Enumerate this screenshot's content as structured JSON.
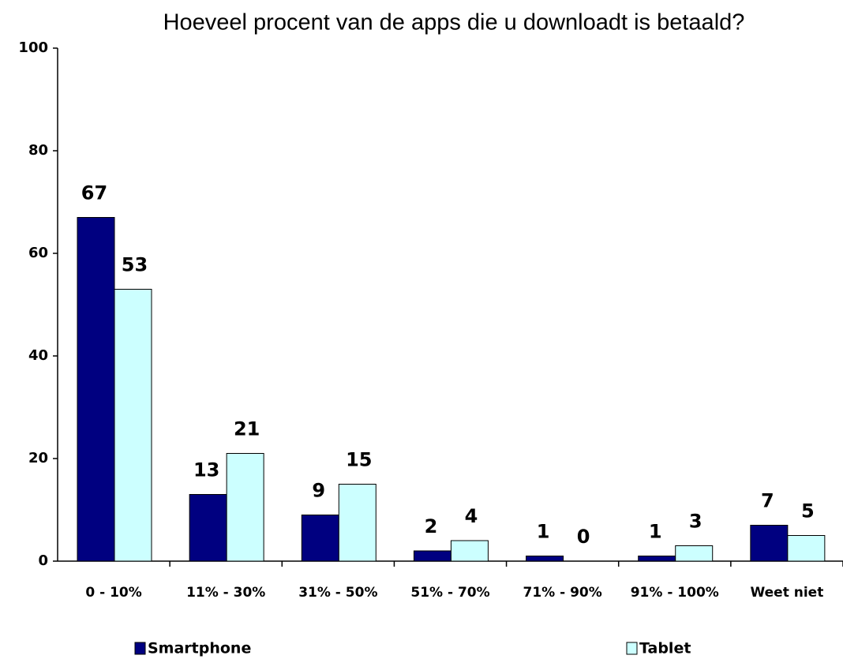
{
  "chart_data": {
    "type": "bar",
    "title": "Hoeveel procent van de apps die u downloadt is betaald?",
    "categories": [
      "0 - 10%",
      "11% - 30%",
      "31% - 50%",
      "51% - 70%",
      "71% - 90%",
      "91% - 100%",
      "Weet niet"
    ],
    "series": [
      {
        "name": "Smartphone",
        "color": "#000080",
        "values": [
          67,
          13,
          9,
          2,
          1,
          1,
          7
        ]
      },
      {
        "name": "Tablet",
        "color": "#ccffff",
        "values": [
          53,
          21,
          15,
          4,
          0,
          3,
          5
        ]
      }
    ],
    "ylim": [
      0,
      100
    ],
    "yticks": [
      0,
      20,
      40,
      60,
      80,
      100
    ],
    "grid": false,
    "legend": "bottom"
  }
}
